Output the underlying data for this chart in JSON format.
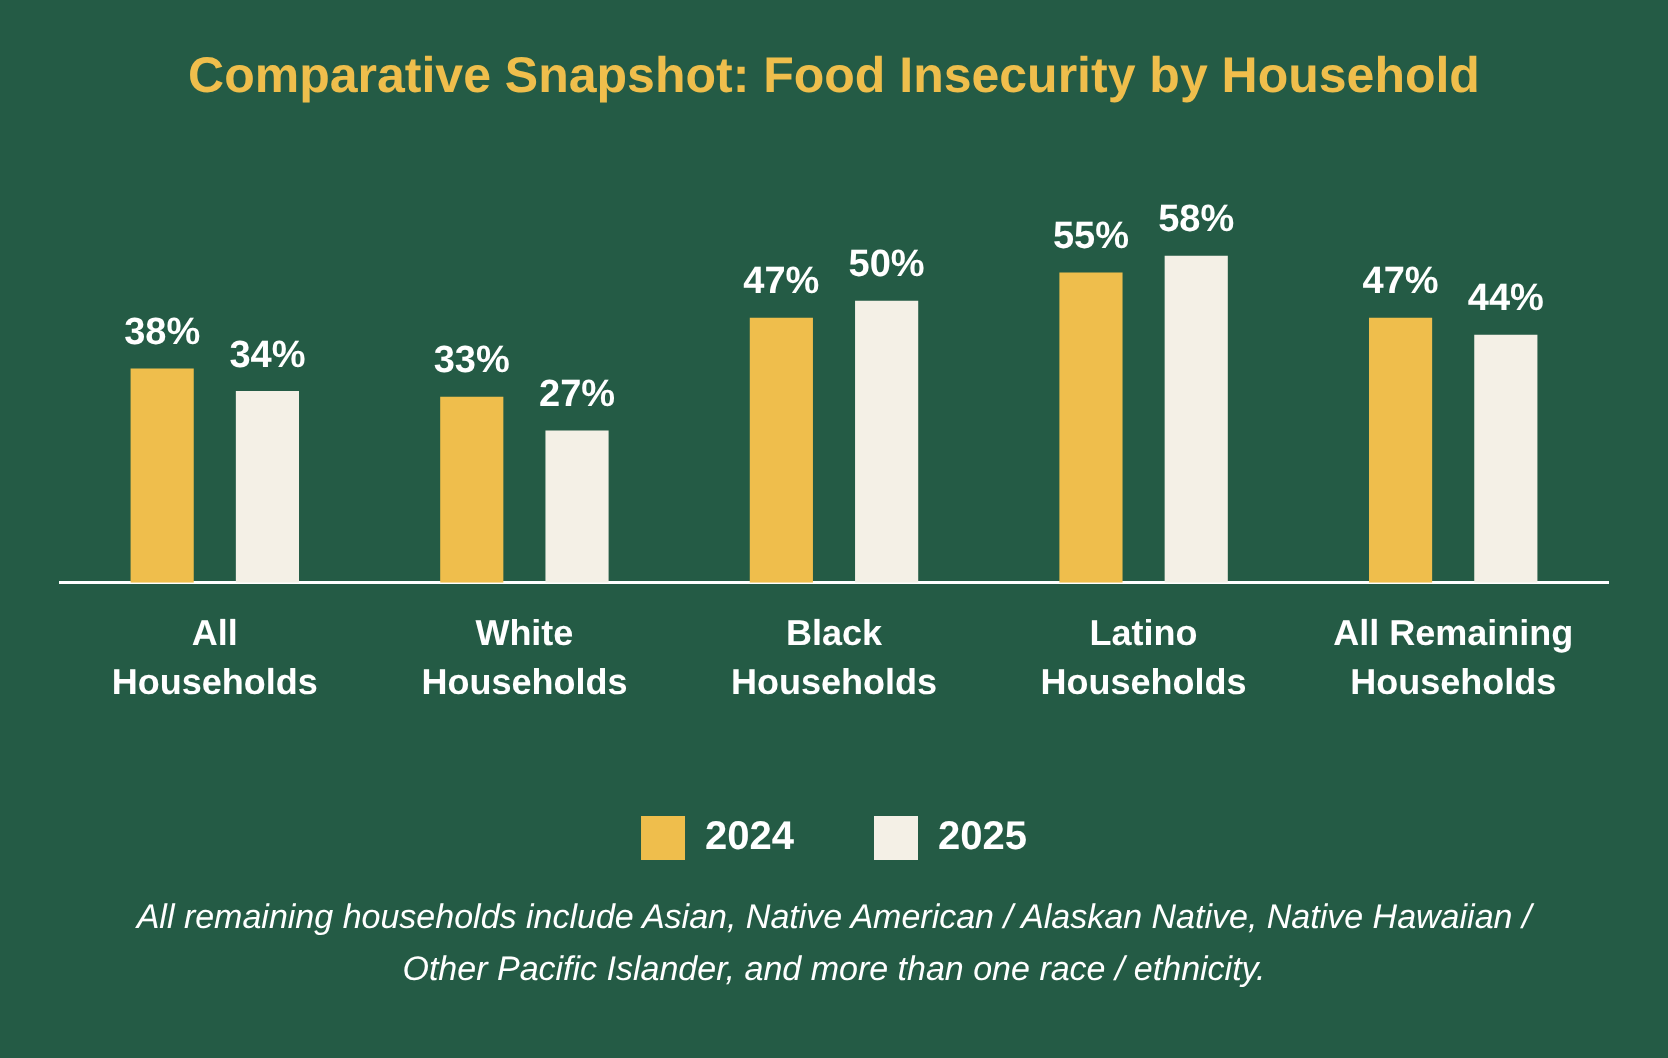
{
  "chart_data": {
    "type": "bar",
    "title": "Comparative Snapshot: Food Insecurity by Household",
    "categories": [
      "All Households",
      "White Households",
      "Black Households",
      "Latino Households",
      "All Remaining Households"
    ],
    "series": [
      {
        "name": "2024",
        "color": "#efbe4c",
        "values": [
          38,
          33,
          47,
          55,
          47
        ],
        "value_labels": [
          "38%",
          "33%",
          "47%",
          "55%",
          "47%"
        ]
      },
      {
        "name": "2025",
        "color": "#f4f0e6",
        "values": [
          34,
          27,
          50,
          58,
          44
        ],
        "value_labels": [
          "34%",
          "27%",
          "50%",
          "58%",
          "44%"
        ]
      }
    ],
    "grid": false,
    "legend": "bottom",
    "annotations": [
      "All remaining households include Asian, Native American / Alaskan Native, Native Hawaiian / Other Pacific Islander, and more than one race / ethnicity."
    ]
  }
}
